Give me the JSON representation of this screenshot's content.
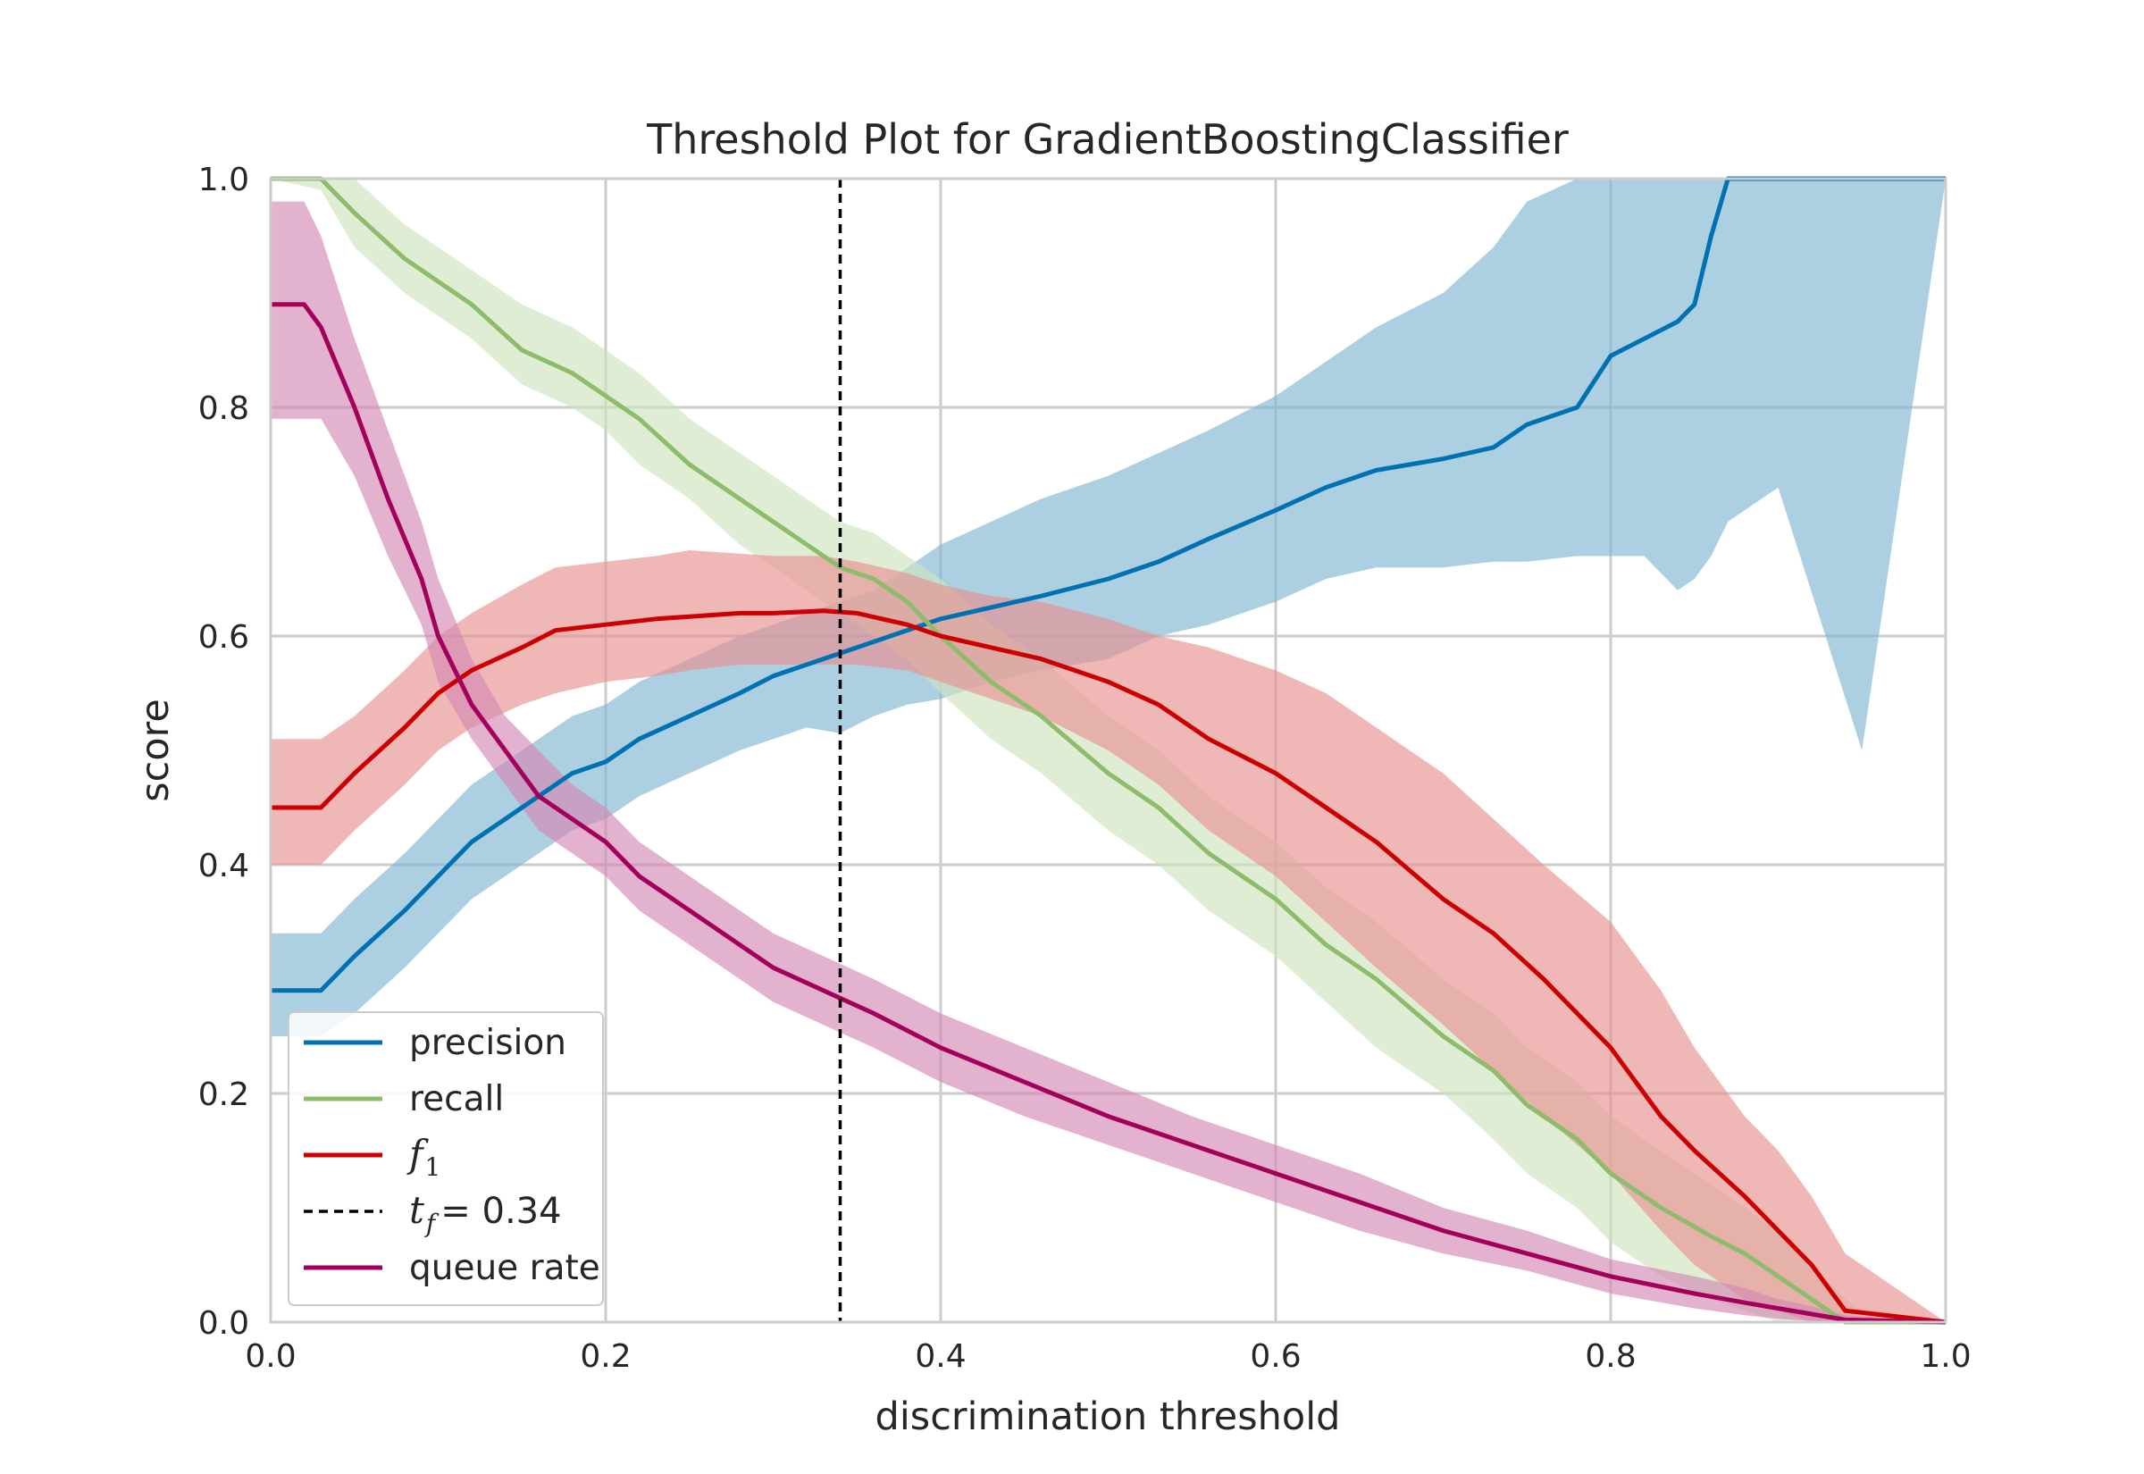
{
  "chart_data": {
    "type": "line",
    "title": "Threshold Plot for GradientBoostingClassifier",
    "xlabel": "discrimination threshold",
    "ylabel": "score",
    "xlim": [
      0.0,
      1.0
    ],
    "ylim": [
      0.0,
      1.0
    ],
    "xticks": [
      "0.0",
      "0.2",
      "0.4",
      "0.6",
      "0.8",
      "1.0"
    ],
    "yticks": [
      "0.0",
      "0.2",
      "0.4",
      "0.6",
      "0.8",
      "1.0"
    ],
    "grid": true,
    "legend_position": "lower-left",
    "threshold_line": {
      "x": 0.34,
      "label_symbol": "t",
      "label_subscript": "f",
      "label_value": "= 0.34",
      "color": "#000000"
    },
    "series": [
      {
        "name": "precision",
        "color": "#0072b2",
        "band_color": "#7fb6d1",
        "x": [
          0.0,
          0.03,
          0.05,
          0.08,
          0.1,
          0.12,
          0.15,
          0.18,
          0.2,
          0.22,
          0.25,
          0.28,
          0.3,
          0.32,
          0.34,
          0.36,
          0.38,
          0.4,
          0.43,
          0.46,
          0.5,
          0.53,
          0.56,
          0.6,
          0.63,
          0.66,
          0.7,
          0.73,
          0.75,
          0.78,
          0.8,
          0.82,
          0.84,
          0.85,
          0.86,
          0.87,
          0.9,
          0.95,
          1.0
        ],
        "values": [
          0.29,
          0.29,
          0.32,
          0.36,
          0.39,
          0.42,
          0.45,
          0.48,
          0.49,
          0.51,
          0.53,
          0.55,
          0.565,
          0.575,
          0.585,
          0.595,
          0.605,
          0.615,
          0.625,
          0.635,
          0.65,
          0.665,
          0.685,
          0.71,
          0.73,
          0.745,
          0.755,
          0.765,
          0.785,
          0.8,
          0.845,
          0.86,
          0.875,
          0.89,
          0.95,
          1.0,
          1.0,
          1.0,
          1.0
        ],
        "lower": [
          0.25,
          0.25,
          0.27,
          0.31,
          0.34,
          0.37,
          0.4,
          0.43,
          0.44,
          0.46,
          0.48,
          0.5,
          0.51,
          0.52,
          0.515,
          0.53,
          0.54,
          0.545,
          0.56,
          0.57,
          0.58,
          0.6,
          0.61,
          0.63,
          0.65,
          0.66,
          0.66,
          0.665,
          0.665,
          0.67,
          0.67,
          0.67,
          0.64,
          0.65,
          0.67,
          0.7,
          0.73,
          0.5,
          1.0
        ],
        "upper": [
          0.34,
          0.34,
          0.37,
          0.41,
          0.44,
          0.47,
          0.5,
          0.53,
          0.54,
          0.56,
          0.58,
          0.6,
          0.61,
          0.62,
          0.63,
          0.64,
          0.66,
          0.68,
          0.7,
          0.72,
          0.74,
          0.76,
          0.78,
          0.81,
          0.84,
          0.87,
          0.9,
          0.94,
          0.98,
          1.0,
          1.0,
          1.0,
          1.0,
          1.0,
          1.0,
          1.0,
          1.0,
          1.0,
          1.0
        ]
      },
      {
        "name": "recall",
        "color": "#8ebc6a",
        "band_color": "#cfe3bf",
        "x": [
          0.0,
          0.03,
          0.05,
          0.08,
          0.1,
          0.12,
          0.15,
          0.18,
          0.2,
          0.22,
          0.25,
          0.28,
          0.3,
          0.33,
          0.34,
          0.36,
          0.38,
          0.4,
          0.43,
          0.46,
          0.5,
          0.53,
          0.56,
          0.6,
          0.63,
          0.66,
          0.7,
          0.73,
          0.75,
          0.78,
          0.8,
          0.83,
          0.86,
          0.88,
          0.9,
          0.92,
          0.94,
          0.95,
          1.0
        ],
        "values": [
          1.0,
          1.0,
          0.97,
          0.93,
          0.91,
          0.89,
          0.85,
          0.83,
          0.81,
          0.79,
          0.75,
          0.72,
          0.7,
          0.67,
          0.66,
          0.65,
          0.63,
          0.6,
          0.56,
          0.53,
          0.48,
          0.45,
          0.41,
          0.37,
          0.33,
          0.3,
          0.25,
          0.22,
          0.19,
          0.16,
          0.13,
          0.1,
          0.075,
          0.06,
          0.04,
          0.02,
          0.0,
          0.0,
          0.0
        ],
        "lower": [
          1.0,
          0.99,
          0.94,
          0.9,
          0.88,
          0.86,
          0.82,
          0.8,
          0.78,
          0.75,
          0.72,
          0.68,
          0.66,
          0.63,
          0.62,
          0.6,
          0.58,
          0.55,
          0.51,
          0.48,
          0.43,
          0.4,
          0.36,
          0.32,
          0.28,
          0.24,
          0.2,
          0.16,
          0.13,
          0.1,
          0.07,
          0.04,
          0.02,
          0.01,
          0.0,
          0.0,
          0.0,
          0.0,
          0.0
        ],
        "upper": [
          1.0,
          1.0,
          1.0,
          0.96,
          0.94,
          0.92,
          0.89,
          0.87,
          0.85,
          0.83,
          0.79,
          0.76,
          0.74,
          0.71,
          0.7,
          0.69,
          0.67,
          0.65,
          0.61,
          0.58,
          0.53,
          0.5,
          0.46,
          0.42,
          0.38,
          0.35,
          0.3,
          0.27,
          0.24,
          0.21,
          0.18,
          0.15,
          0.12,
          0.1,
          0.08,
          0.05,
          0.02,
          0.01,
          0.0
        ]
      },
      {
        "name": "f1",
        "color": "#cc0000",
        "band_color": "#e89090",
        "x": [
          0.0,
          0.03,
          0.05,
          0.08,
          0.1,
          0.12,
          0.15,
          0.17,
          0.2,
          0.23,
          0.25,
          0.28,
          0.3,
          0.33,
          0.35,
          0.38,
          0.4,
          0.43,
          0.46,
          0.5,
          0.53,
          0.56,
          0.6,
          0.63,
          0.66,
          0.7,
          0.73,
          0.76,
          0.8,
          0.83,
          0.85,
          0.88,
          0.9,
          0.92,
          0.94,
          1.0
        ],
        "values": [
          0.45,
          0.45,
          0.48,
          0.52,
          0.55,
          0.57,
          0.59,
          0.605,
          0.61,
          0.615,
          0.617,
          0.62,
          0.62,
          0.622,
          0.62,
          0.61,
          0.6,
          0.59,
          0.58,
          0.56,
          0.54,
          0.51,
          0.48,
          0.45,
          0.42,
          0.37,
          0.34,
          0.3,
          0.24,
          0.18,
          0.15,
          0.11,
          0.08,
          0.05,
          0.01,
          0.0
        ],
        "lower": [
          0.4,
          0.4,
          0.43,
          0.47,
          0.5,
          0.52,
          0.54,
          0.55,
          0.56,
          0.565,
          0.57,
          0.575,
          0.575,
          0.575,
          0.575,
          0.57,
          0.56,
          0.545,
          0.53,
          0.5,
          0.47,
          0.43,
          0.39,
          0.35,
          0.31,
          0.26,
          0.22,
          0.18,
          0.13,
          0.08,
          0.05,
          0.02,
          0.01,
          0.0,
          0.0,
          0.0
        ],
        "upper": [
          0.51,
          0.51,
          0.53,
          0.57,
          0.6,
          0.62,
          0.645,
          0.66,
          0.665,
          0.67,
          0.675,
          0.672,
          0.67,
          0.67,
          0.665,
          0.655,
          0.645,
          0.635,
          0.63,
          0.615,
          0.6,
          0.59,
          0.57,
          0.55,
          0.52,
          0.48,
          0.44,
          0.4,
          0.35,
          0.29,
          0.24,
          0.18,
          0.15,
          0.11,
          0.06,
          0.0
        ]
      },
      {
        "name": "queue rate",
        "color": "#a3005c",
        "band_color": "#d488b3",
        "x": [
          0.0,
          0.02,
          0.03,
          0.05,
          0.07,
          0.09,
          0.1,
          0.12,
          0.14,
          0.16,
          0.18,
          0.2,
          0.22,
          0.25,
          0.28,
          0.3,
          0.33,
          0.36,
          0.4,
          0.45,
          0.5,
          0.55,
          0.6,
          0.65,
          0.7,
          0.75,
          0.8,
          0.85,
          0.88,
          0.9,
          0.92,
          0.94,
          1.0
        ],
        "values": [
          0.89,
          0.89,
          0.87,
          0.8,
          0.72,
          0.65,
          0.6,
          0.54,
          0.5,
          0.46,
          0.44,
          0.42,
          0.39,
          0.36,
          0.33,
          0.31,
          0.29,
          0.27,
          0.24,
          0.21,
          0.18,
          0.155,
          0.13,
          0.105,
          0.08,
          0.06,
          0.04,
          0.025,
          0.017,
          0.012,
          0.007,
          0.002,
          0.0
        ],
        "lower": [
          0.79,
          0.79,
          0.79,
          0.74,
          0.67,
          0.61,
          0.56,
          0.51,
          0.47,
          0.43,
          0.41,
          0.39,
          0.36,
          0.33,
          0.3,
          0.28,
          0.26,
          0.24,
          0.21,
          0.18,
          0.155,
          0.13,
          0.105,
          0.08,
          0.06,
          0.045,
          0.025,
          0.012,
          0.006,
          0.003,
          0.001,
          0.0,
          0.0
        ],
        "upper": [
          0.98,
          0.98,
          0.95,
          0.86,
          0.78,
          0.7,
          0.65,
          0.58,
          0.53,
          0.5,
          0.47,
          0.45,
          0.42,
          0.39,
          0.36,
          0.34,
          0.32,
          0.3,
          0.27,
          0.24,
          0.21,
          0.18,
          0.155,
          0.13,
          0.1,
          0.08,
          0.055,
          0.04,
          0.03,
          0.02,
          0.014,
          0.006,
          0.0
        ]
      }
    ]
  }
}
